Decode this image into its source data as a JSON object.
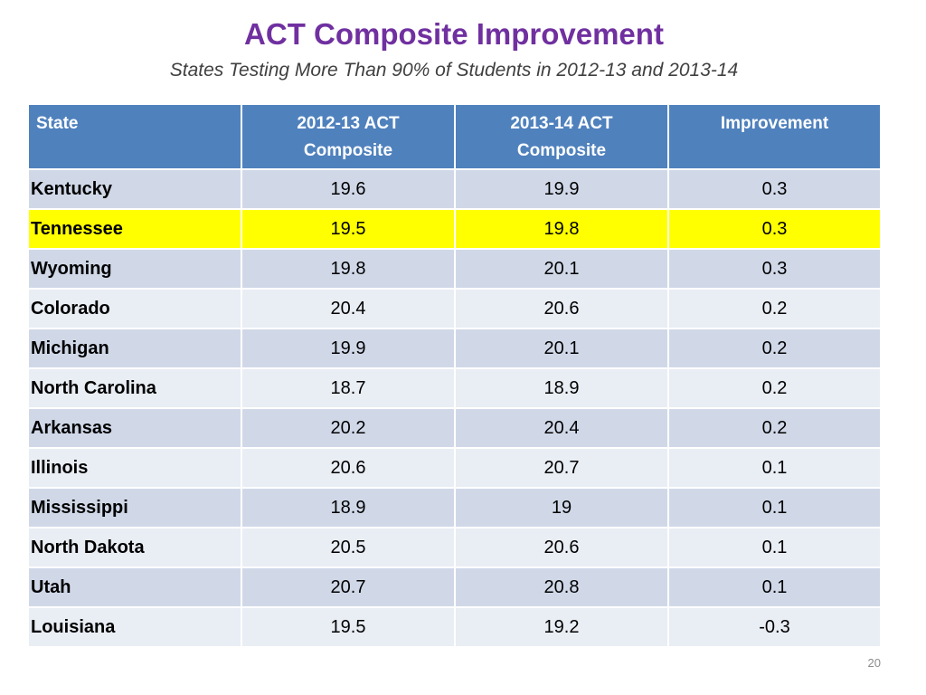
{
  "slide": {
    "title": "ACT Composite Improvement",
    "subtitle": "States Testing More Than 90% of Students in 2012-13 and 2013-14",
    "page_number": "20"
  },
  "table": {
    "headers": [
      {
        "line1": "State",
        "line2": ""
      },
      {
        "line1": "2012-13 ACT",
        "line2": "Composite"
      },
      {
        "line1": "2013-14 ACT",
        "line2": "Composite"
      },
      {
        "line1": "Improvement",
        "line2": ""
      }
    ],
    "highlight_color": "#ffff00",
    "header_color": "#4f81bd",
    "rows": [
      {
        "state": "Kentucky",
        "y2012": "19.6",
        "y2013": "19.9",
        "improvement": "0.3",
        "highlight": false
      },
      {
        "state": "Tennessee",
        "y2012": "19.5",
        "y2013": "19.8",
        "improvement": "0.3",
        "highlight": true
      },
      {
        "state": "Wyoming",
        "y2012": "19.8",
        "y2013": "20.1",
        "improvement": "0.3",
        "highlight": false
      },
      {
        "state": "Colorado",
        "y2012": "20.4",
        "y2013": "20.6",
        "improvement": "0.2",
        "highlight": false
      },
      {
        "state": "Michigan",
        "y2012": "19.9",
        "y2013": "20.1",
        "improvement": "0.2",
        "highlight": false
      },
      {
        "state": "North Carolina",
        "y2012": "18.7",
        "y2013": "18.9",
        "improvement": "0.2",
        "highlight": false
      },
      {
        "state": "Arkansas",
        "y2012": "20.2",
        "y2013": "20.4",
        "improvement": "0.2",
        "highlight": false
      },
      {
        "state": "Illinois",
        "y2012": "20.6",
        "y2013": "20.7",
        "improvement": "0.1",
        "highlight": false
      },
      {
        "state": "Mississippi",
        "y2012": "18.9",
        "y2013": "19",
        "improvement": "0.1",
        "highlight": false
      },
      {
        "state": "North Dakota",
        "y2012": "20.5",
        "y2013": "20.6",
        "improvement": "0.1",
        "highlight": false
      },
      {
        "state": "Utah",
        "y2012": "20.7",
        "y2013": "20.8",
        "improvement": "0.1",
        "highlight": false
      },
      {
        "state": "Louisiana",
        "y2012": "19.5",
        "y2013": "19.2",
        "improvement": "-0.3",
        "highlight": false
      }
    ]
  }
}
